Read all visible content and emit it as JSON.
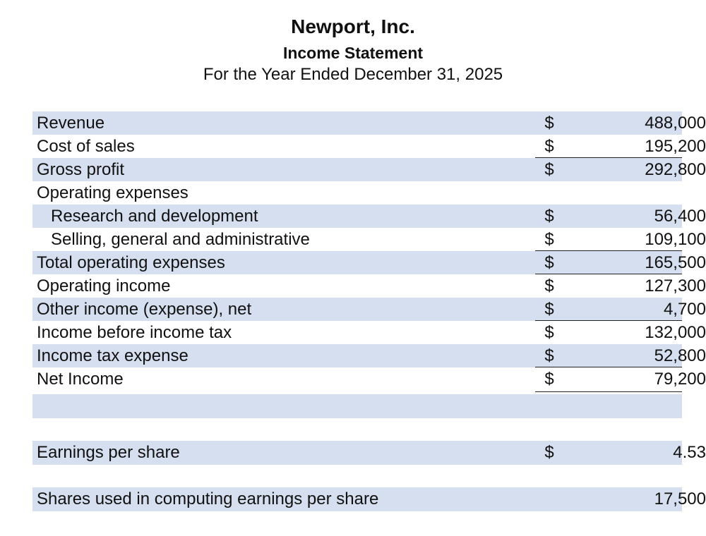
{
  "header": {
    "company": "Newport, Inc.",
    "title": "Income Statement",
    "period": "For the Year Ended December 31, 2025"
  },
  "currency": "$",
  "rows": [
    {
      "label": "Revenue",
      "value": "488,000"
    },
    {
      "label": "Cost of sales",
      "value": "195,200"
    },
    {
      "label": "Gross profit",
      "value": "292,800"
    },
    {
      "label": "Operating expenses",
      "value": ""
    },
    {
      "label": "Research and development",
      "value": "56,400"
    },
    {
      "label": "Selling, general and administrative",
      "value": "109,100"
    },
    {
      "label": "Total operating expenses",
      "value": "165,500"
    },
    {
      "label": "Operating income",
      "value": "127,300"
    },
    {
      "label": "Other income (expense), net",
      "value": "4,700"
    },
    {
      "label": "Income before income tax",
      "value": "132,000"
    },
    {
      "label": "Income tax expense",
      "value": "52,800"
    },
    {
      "label": "Net Income",
      "value": "79,200"
    }
  ],
  "eps": {
    "label": "Earnings per share",
    "value": "4.53"
  },
  "shares": {
    "label": "Shares used in computing earnings per share",
    "value": "17,500"
  }
}
